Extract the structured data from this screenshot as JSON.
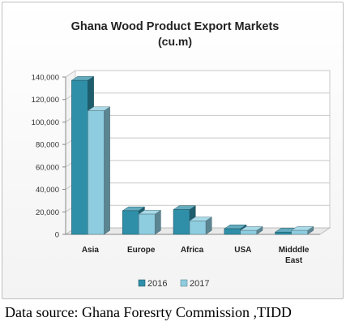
{
  "chart_data": {
    "type": "bar",
    "title": "Ghana Wood Product Export Markets",
    "subtitle": "(cu.m)",
    "xlabel": "",
    "ylabel": "",
    "categories": [
      "Asia",
      "Europe",
      "Africa",
      "USA",
      "Midddle East"
    ],
    "series": [
      {
        "name": "2016",
        "values": [
          137000,
          21000,
          22000,
          5000,
          2000
        ],
        "color": "#2f8fa8"
      },
      {
        "name": "2017",
        "values": [
          110000,
          18000,
          12000,
          3500,
          3500
        ],
        "color": "#8ecde0"
      }
    ],
    "yticks": [
      "0",
      "20,000",
      "40,000",
      "60,000",
      "80,000",
      "100,000",
      "120,000",
      "140,000"
    ],
    "ylim": [
      0,
      140000
    ],
    "grid": true,
    "legend": "bottom",
    "style": "3d-column"
  },
  "source": "Data source: Ghana Foresrty Commission ,TIDD"
}
